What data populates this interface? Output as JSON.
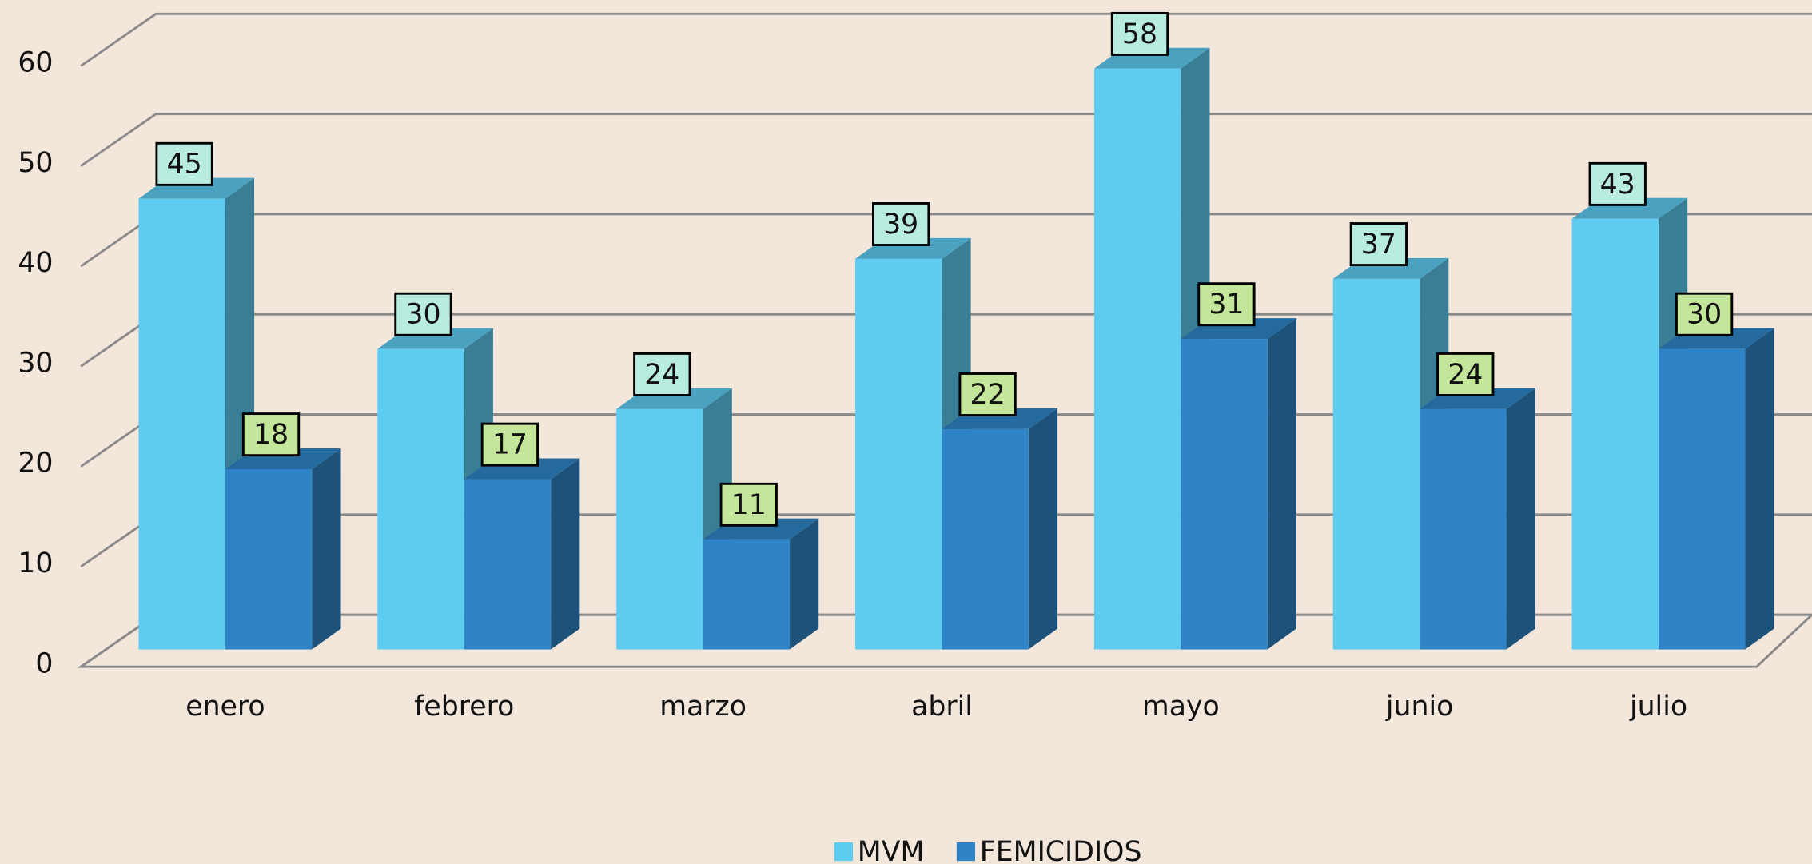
{
  "chart_data": {
    "type": "bar3d",
    "categories": [
      "enero",
      "febrero",
      "marzo",
      "abril",
      "mayo",
      "junio",
      "julio"
    ],
    "series": [
      {
        "name": "MVM",
        "color": "#5ecbf0",
        "values": [
          45,
          30,
          24,
          39,
          58,
          37,
          43
        ]
      },
      {
        "name": "FEMICIDIOS",
        "color": "#2e84c6",
        "values": [
          18,
          17,
          11,
          22,
          31,
          24,
          30
        ]
      }
    ],
    "ylim": [
      0,
      60
    ],
    "yticks": [
      0,
      10,
      20,
      30,
      40,
      50,
      60
    ],
    "grid": true,
    "legend": "bottom"
  }
}
